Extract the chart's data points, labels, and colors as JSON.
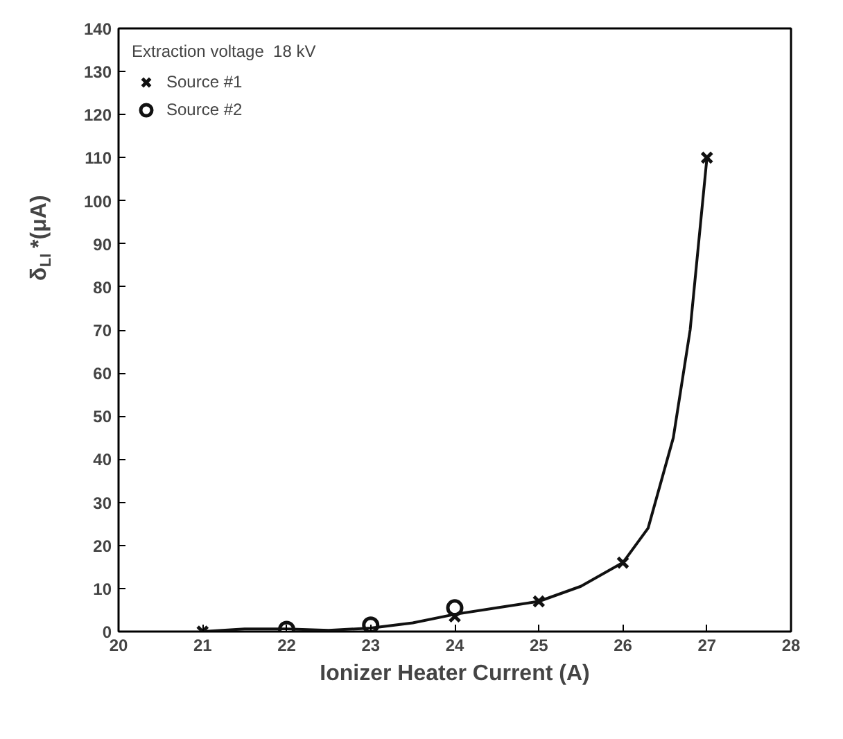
{
  "chart_data": {
    "type": "scatter",
    "xlabel": "Ionizer Heater Current (A)",
    "ylabel": "δ$_{LI}$ *(μA)",
    "legend_title": "Extraction voltage  18 kV",
    "legend": "top left",
    "grid": false,
    "xlim": [
      20,
      28
    ],
    "ylim": [
      0,
      140
    ],
    "xticks": [
      20,
      21,
      22,
      23,
      24,
      25,
      26,
      27,
      28
    ],
    "yticks": [
      0,
      10,
      20,
      30,
      40,
      50,
      60,
      70,
      80,
      90,
      100,
      110,
      120,
      130,
      140
    ],
    "series": [
      {
        "name": "Source #1",
        "color": "#111111",
        "marker": "cross",
        "x": [
          21,
          24,
          25,
          26,
          27
        ],
        "values": [
          0,
          3.5,
          7,
          16,
          110
        ]
      },
      {
        "name": "Source #2",
        "color": "#111111",
        "marker": "circle",
        "x": [
          22,
          23,
          24
        ],
        "values": [
          0.5,
          1.5,
          5.5
        ]
      },
      {
        "type": "line",
        "color": "#111111",
        "x": [
          21,
          21.5,
          22,
          22.5,
          23,
          23.5,
          24,
          24.5,
          25,
          25.5,
          26,
          26.3,
          26.6,
          26.8,
          27
        ],
        "values": [
          0,
          0.6,
          0.6,
          0.3,
          0.8,
          2,
          4,
          5.5,
          7,
          10.5,
          16,
          24,
          45,
          70,
          110
        ]
      }
    ]
  }
}
